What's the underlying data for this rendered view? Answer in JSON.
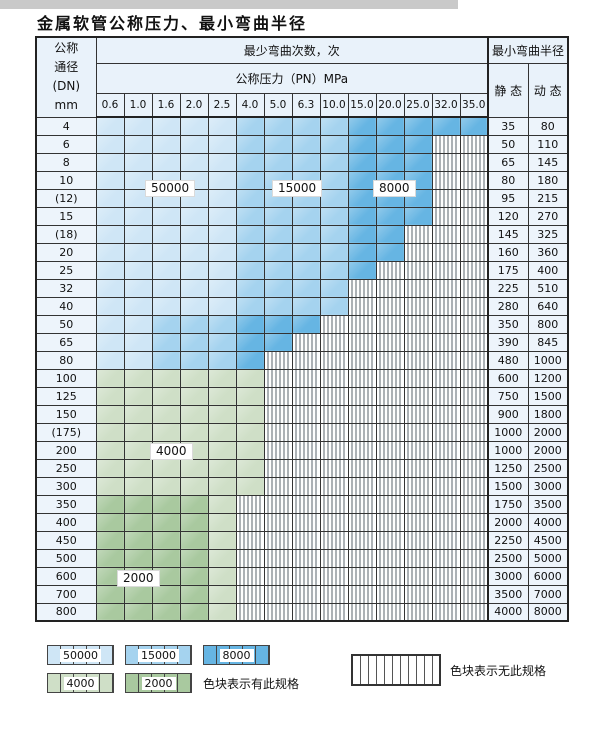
{
  "title": "金属软管公称压力、最小弯曲半径",
  "table": {
    "corner_header": [
      "公称",
      "通径",
      "(DN)",
      "mm"
    ],
    "bend_cycles_header": "最少弯曲次数，次",
    "pressure_header": "公称压力（PN）MPa",
    "radius_header": "最小弯曲半径",
    "static_header": "静 态",
    "dynamic_header": "动 态"
  },
  "chart_data": {
    "type": "table",
    "title": "金属软管公称压力、最小弯曲半径",
    "columns_pressure_MPa": [
      "0.6",
      "1.0",
      "1.6",
      "2.0",
      "2.5",
      "4.0",
      "5.0",
      "6.3",
      "10.0",
      "15.0",
      "20.0",
      "25.0",
      "32.0",
      "35.0"
    ],
    "legend_ratings_bend_cycles": [
      "50000",
      "15000",
      "8000",
      "4000",
      "2000"
    ],
    "unrated_cells_meaning": "无此规格",
    "rows": [
      {
        "dn": "4",
        "zones": [
          [
            "50000",
            5
          ],
          [
            "15000",
            4
          ],
          [
            "8000",
            5
          ]
        ],
        "static": 35,
        "dynamic": 80
      },
      {
        "dn": "6",
        "zones": [
          [
            "50000",
            5
          ],
          [
            "15000",
            4
          ],
          [
            "8000",
            3
          ]
        ],
        "static": 50,
        "dynamic": 110
      },
      {
        "dn": "8",
        "zones": [
          [
            "50000",
            5
          ],
          [
            "15000",
            4
          ],
          [
            "8000",
            3
          ]
        ],
        "static": 65,
        "dynamic": 145
      },
      {
        "dn": "10",
        "zones": [
          [
            "50000",
            5
          ],
          [
            "15000",
            4
          ],
          [
            "8000",
            3
          ]
        ],
        "static": 80,
        "dynamic": 180
      },
      {
        "dn": "(12)",
        "zones": [
          [
            "50000",
            5
          ],
          [
            "15000",
            4
          ],
          [
            "8000",
            3
          ]
        ],
        "static": 95,
        "dynamic": 215
      },
      {
        "dn": "15",
        "zones": [
          [
            "50000",
            5
          ],
          [
            "15000",
            4
          ],
          [
            "8000",
            3
          ]
        ],
        "static": 120,
        "dynamic": 270
      },
      {
        "dn": "(18)",
        "zones": [
          [
            "50000",
            5
          ],
          [
            "15000",
            4
          ],
          [
            "8000",
            2
          ]
        ],
        "static": 145,
        "dynamic": 325
      },
      {
        "dn": "20",
        "zones": [
          [
            "50000",
            5
          ],
          [
            "15000",
            4
          ],
          [
            "8000",
            2
          ]
        ],
        "static": 160,
        "dynamic": 360
      },
      {
        "dn": "25",
        "zones": [
          [
            "50000",
            5
          ],
          [
            "15000",
            4
          ],
          [
            "8000",
            1
          ]
        ],
        "static": 175,
        "dynamic": 400
      },
      {
        "dn": "32",
        "zones": [
          [
            "50000",
            5
          ],
          [
            "15000",
            4
          ]
        ],
        "static": 225,
        "dynamic": 510
      },
      {
        "dn": "40",
        "zones": [
          [
            "50000",
            5
          ],
          [
            "15000",
            4
          ]
        ],
        "static": 280,
        "dynamic": 640
      },
      {
        "dn": "50",
        "zones": [
          [
            "50000",
            2
          ],
          [
            "15000",
            3
          ],
          [
            "8000",
            3
          ]
        ],
        "static": 350,
        "dynamic": 800
      },
      {
        "dn": "65",
        "zones": [
          [
            "50000",
            2
          ],
          [
            "15000",
            3
          ],
          [
            "8000",
            2
          ]
        ],
        "static": 390,
        "dynamic": 845
      },
      {
        "dn": "80",
        "zones": [
          [
            "50000",
            2
          ],
          [
            "15000",
            3
          ],
          [
            "8000",
            1
          ]
        ],
        "static": 480,
        "dynamic": 1000
      },
      {
        "dn": "100",
        "zones": [
          [
            "4000",
            6
          ]
        ],
        "static": 600,
        "dynamic": 1200
      },
      {
        "dn": "125",
        "zones": [
          [
            "4000",
            6
          ]
        ],
        "static": 750,
        "dynamic": 1500
      },
      {
        "dn": "150",
        "zones": [
          [
            "4000",
            6
          ]
        ],
        "static": 900,
        "dynamic": 1800
      },
      {
        "dn": "(175)",
        "zones": [
          [
            "4000",
            6
          ]
        ],
        "static": 1000,
        "dynamic": 2000
      },
      {
        "dn": "200",
        "zones": [
          [
            "4000",
            6
          ]
        ],
        "static": 1000,
        "dynamic": 2000
      },
      {
        "dn": "250",
        "zones": [
          [
            "4000",
            6
          ]
        ],
        "static": 1250,
        "dynamic": 2500
      },
      {
        "dn": "300",
        "zones": [
          [
            "4000",
            6
          ]
        ],
        "static": 1500,
        "dynamic": 3000
      },
      {
        "dn": "350",
        "zones": [
          [
            "2000",
            4
          ],
          [
            "4000",
            1
          ]
        ],
        "static": 1750,
        "dynamic": 3500
      },
      {
        "dn": "400",
        "zones": [
          [
            "2000",
            4
          ],
          [
            "4000",
            1
          ]
        ],
        "static": 2000,
        "dynamic": 4000
      },
      {
        "dn": "450",
        "zones": [
          [
            "2000",
            4
          ],
          [
            "4000",
            1
          ]
        ],
        "static": 2250,
        "dynamic": 4500
      },
      {
        "dn": "500",
        "zones": [
          [
            "2000",
            4
          ],
          [
            "4000",
            1
          ]
        ],
        "static": 2500,
        "dynamic": 5000
      },
      {
        "dn": "600",
        "zones": [
          [
            "2000",
            4
          ],
          [
            "4000",
            1
          ]
        ],
        "static": 3000,
        "dynamic": 6000
      },
      {
        "dn": "700",
        "zones": [
          [
            "2000",
            4
          ],
          [
            "4000",
            1
          ]
        ],
        "static": 3500,
        "dynamic": 7000
      },
      {
        "dn": "800",
        "zones": [
          [
            "2000",
            4
          ],
          [
            "4000",
            1
          ]
        ],
        "static": 4000,
        "dynamic": 8000
      }
    ]
  },
  "overlay_labels": [
    {
      "id": "50000",
      "text": "50000"
    },
    {
      "id": "15000",
      "text": "15000"
    },
    {
      "id": "8000",
      "text": "8000"
    },
    {
      "id": "4000",
      "text": "4000"
    },
    {
      "id": "2000",
      "text": "2000"
    }
  ],
  "legend": {
    "items": [
      {
        "label": "50000"
      },
      {
        "label": "15000"
      },
      {
        "label": "8000"
      },
      {
        "label": "4000"
      },
      {
        "label": "2000"
      }
    ],
    "available_note": "色块表示有此规格",
    "unavailable_note": "色块表示无此规格"
  },
  "colors": {
    "rating_50000": "#cfe6f6",
    "rating_15000": "#a5d3ef",
    "rating_8000": "#66b5e3",
    "rating_4000": "#cfdfc7",
    "rating_2000": "#a9c99f",
    "header_bg": "#e9f2fa",
    "label_bg": "#edf4fb",
    "grid": "#333333"
  }
}
